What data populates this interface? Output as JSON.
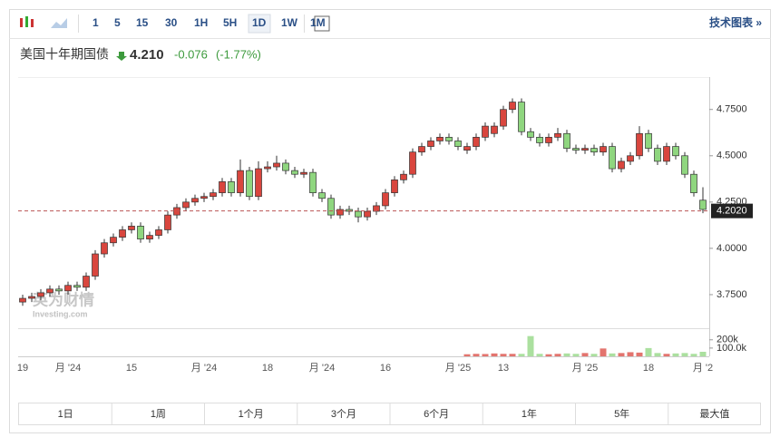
{
  "toolbar": {
    "intervals": [
      "1",
      "5",
      "15",
      "30",
      "1H",
      "5H",
      "1D",
      "1W",
      "1M"
    ],
    "selected": 6,
    "link": "技术图表 »"
  },
  "header": {
    "name": "美国十年期国债",
    "price": "4.210",
    "change": "-0.076",
    "change_pct": "(-1.77%)"
  },
  "watermark": {
    "brand": "英为财情",
    "site": "Investing.com"
  },
  "chart_data": {
    "type": "candlestick",
    "up_color": "#d9463e",
    "down_color": "#8fd67f",
    "categories": [
      "19",
      null,
      null,
      null,
      null,
      "月 '24",
      null,
      null,
      null,
      null,
      null,
      null,
      "15",
      null,
      null,
      null,
      null,
      null,
      null,
      null,
      "月 '24",
      null,
      null,
      null,
      null,
      null,
      null,
      "18",
      null,
      null,
      null,
      null,
      null,
      "月 '24",
      null,
      null,
      null,
      null,
      null,
      null,
      "16",
      null,
      null,
      null,
      null,
      null,
      null,
      null,
      "月 '25",
      null,
      null,
      null,
      null,
      "13",
      null,
      null,
      null,
      null,
      null,
      null,
      null,
      null,
      "月 '25",
      null,
      null,
      null,
      null,
      null,
      null,
      "18",
      null,
      null,
      null,
      null,
      null,
      "月 '2"
    ],
    "open": [
      3.71,
      3.73,
      3.74,
      3.76,
      3.78,
      3.77,
      3.8,
      3.79,
      3.85,
      3.97,
      4.03,
      4.06,
      4.1,
      4.12,
      4.05,
      4.07,
      4.1,
      4.18,
      4.22,
      4.25,
      4.27,
      4.28,
      4.3,
      4.36,
      4.3,
      4.42,
      4.28,
      4.43,
      4.44,
      4.46,
      4.42,
      4.4,
      4.41,
      4.3,
      4.27,
      4.18,
      4.21,
      4.2,
      4.17,
      4.2,
      4.23,
      4.3,
      4.37,
      4.4,
      4.52,
      4.55,
      4.58,
      4.6,
      4.58,
      4.53,
      4.55,
      4.6,
      4.62,
      4.66,
      4.75,
      4.79,
      4.63,
      4.6,
      4.57,
      4.6,
      4.62,
      4.54,
      4.53,
      4.54,
      4.52,
      4.55,
      4.43,
      4.47,
      4.5,
      4.62,
      4.54,
      4.47,
      4.55,
      4.5,
      4.4,
      4.26
    ],
    "high": [
      3.75,
      3.76,
      3.78,
      3.8,
      3.8,
      3.82,
      3.82,
      3.87,
      3.99,
      4.05,
      4.08,
      4.12,
      4.14,
      4.14,
      4.09,
      4.12,
      4.2,
      4.24,
      4.27,
      4.29,
      4.3,
      4.32,
      4.38,
      4.38,
      4.48,
      4.44,
      4.47,
      4.47,
      4.5,
      4.48,
      4.44,
      4.43,
      4.43,
      4.32,
      4.29,
      4.23,
      4.23,
      4.22,
      4.22,
      4.25,
      4.32,
      4.39,
      4.42,
      4.54,
      4.57,
      4.6,
      4.62,
      4.62,
      4.6,
      4.57,
      4.62,
      4.68,
      4.68,
      4.77,
      4.81,
      4.81,
      4.65,
      4.62,
      4.62,
      4.65,
      4.64,
      4.56,
      4.56,
      4.56,
      4.57,
      4.57,
      4.49,
      4.52,
      4.66,
      4.64,
      4.56,
      4.57,
      4.57,
      4.52,
      4.42,
      4.33
    ],
    "low": [
      3.69,
      3.71,
      3.72,
      3.74,
      3.75,
      3.75,
      3.77,
      3.77,
      3.83,
      3.95,
      4.01,
      4.04,
      4.08,
      4.03,
      4.03,
      4.05,
      4.08,
      4.16,
      4.2,
      4.23,
      4.25,
      4.26,
      4.28,
      4.28,
      4.28,
      4.26,
      4.26,
      4.41,
      4.42,
      4.4,
      4.38,
      4.38,
      4.28,
      4.25,
      4.16,
      4.16,
      4.18,
      4.14,
      4.15,
      4.18,
      4.21,
      4.28,
      4.35,
      4.38,
      4.5,
      4.53,
      4.56,
      4.56,
      4.53,
      4.51,
      4.53,
      4.58,
      4.6,
      4.64,
      4.73,
      4.61,
      4.58,
      4.55,
      4.55,
      4.58,
      4.52,
      4.51,
      4.51,
      4.5,
      4.5,
      4.41,
      4.41,
      4.45,
      4.48,
      4.52,
      4.45,
      4.45,
      4.48,
      4.38,
      4.28,
      4.19
    ],
    "close": [
      3.73,
      3.74,
      3.76,
      3.78,
      3.77,
      3.8,
      3.79,
      3.85,
      3.97,
      4.03,
      4.06,
      4.1,
      4.12,
      4.05,
      4.07,
      4.1,
      4.18,
      4.22,
      4.25,
      4.27,
      4.28,
      4.3,
      4.36,
      4.3,
      4.42,
      4.28,
      4.43,
      4.44,
      4.46,
      4.42,
      4.4,
      4.41,
      4.3,
      4.27,
      4.18,
      4.21,
      4.2,
      4.17,
      4.2,
      4.23,
      4.3,
      4.37,
      4.4,
      4.52,
      4.55,
      4.58,
      4.6,
      4.58,
      4.55,
      4.55,
      4.6,
      4.66,
      4.66,
      4.75,
      4.79,
      4.63,
      4.6,
      4.57,
      4.6,
      4.62,
      4.54,
      4.53,
      4.54,
      4.52,
      4.55,
      4.43,
      4.47,
      4.5,
      4.62,
      4.54,
      4.47,
      4.55,
      4.5,
      4.4,
      4.3,
      4.21
    ],
    "volume": [
      null,
      null,
      null,
      null,
      null,
      null,
      null,
      null,
      null,
      null,
      null,
      null,
      null,
      null,
      null,
      null,
      null,
      null,
      null,
      null,
      null,
      null,
      null,
      null,
      null,
      null,
      null,
      null,
      null,
      null,
      null,
      null,
      null,
      null,
      null,
      null,
      null,
      null,
      null,
      null,
      null,
      null,
      null,
      null,
      null,
      null,
      null,
      null,
      null,
      25000,
      30000,
      28000,
      35000,
      30000,
      30000,
      30000,
      245000,
      30000,
      25000,
      30000,
      35000,
      30000,
      40000,
      30000,
      95000,
      35000,
      40000,
      50000,
      45000,
      100000,
      40000,
      30000,
      35000,
      40000,
      30000,
      55000
    ],
    "ylim": [
      3.62,
      4.92
    ],
    "yticks": [
      {
        "value": 3.75,
        "label": "3.7500"
      },
      {
        "value": 4.0,
        "label": "4.0000"
      },
      {
        "value": 4.25,
        "label": "4.2500"
      },
      {
        "value": 4.5,
        "label": "4.5000"
      },
      {
        "value": 4.75,
        "label": "4.7500"
      }
    ],
    "y2lim": [
      0,
      340000
    ],
    "y2ticks": [
      {
        "value": 100000,
        "label": "100.0k"
      },
      {
        "value": 200000,
        "label": "200k"
      }
    ],
    "current": {
      "value": 4.202,
      "label": "4.2020"
    }
  },
  "range_buttons": [
    "1日",
    "1周",
    "1个月",
    "3个月",
    "6个月",
    "1年",
    "5年",
    "最大值"
  ]
}
